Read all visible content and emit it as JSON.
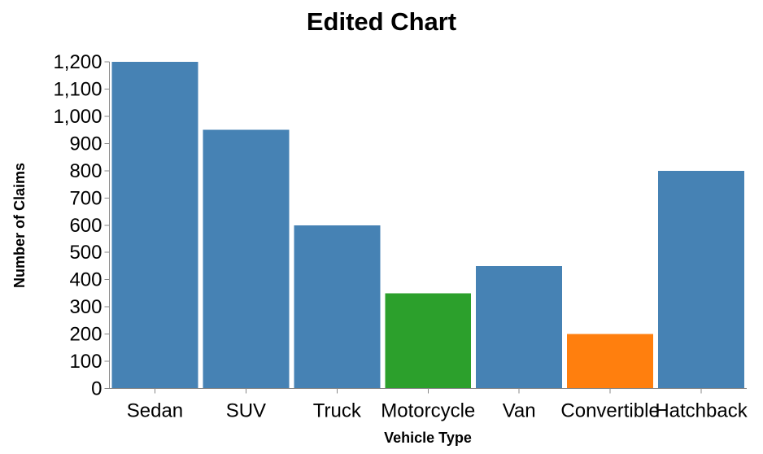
{
  "chart_data": {
    "type": "bar",
    "title": "Edited Chart",
    "xlabel": "Vehicle Type",
    "ylabel": "Number of Claims",
    "categories": [
      "Sedan",
      "SUV",
      "Truck",
      "Motorcycle",
      "Van",
      "Convertible",
      "Hatchback"
    ],
    "values": [
      1200,
      950,
      600,
      350,
      450,
      200,
      800
    ],
    "bar_colors": [
      "#4682b4",
      "#4682b4",
      "#4682b4",
      "#2ca02c",
      "#4682b4",
      "#ff7f0e",
      "#4682b4"
    ],
    "ylim": [
      0,
      1200
    ],
    "yticks": [
      "0",
      "100",
      "200",
      "300",
      "400",
      "500",
      "600",
      "700",
      "800",
      "900",
      "1,000",
      "1,100",
      "1,200"
    ],
    "grid": false,
    "legend": "none"
  }
}
